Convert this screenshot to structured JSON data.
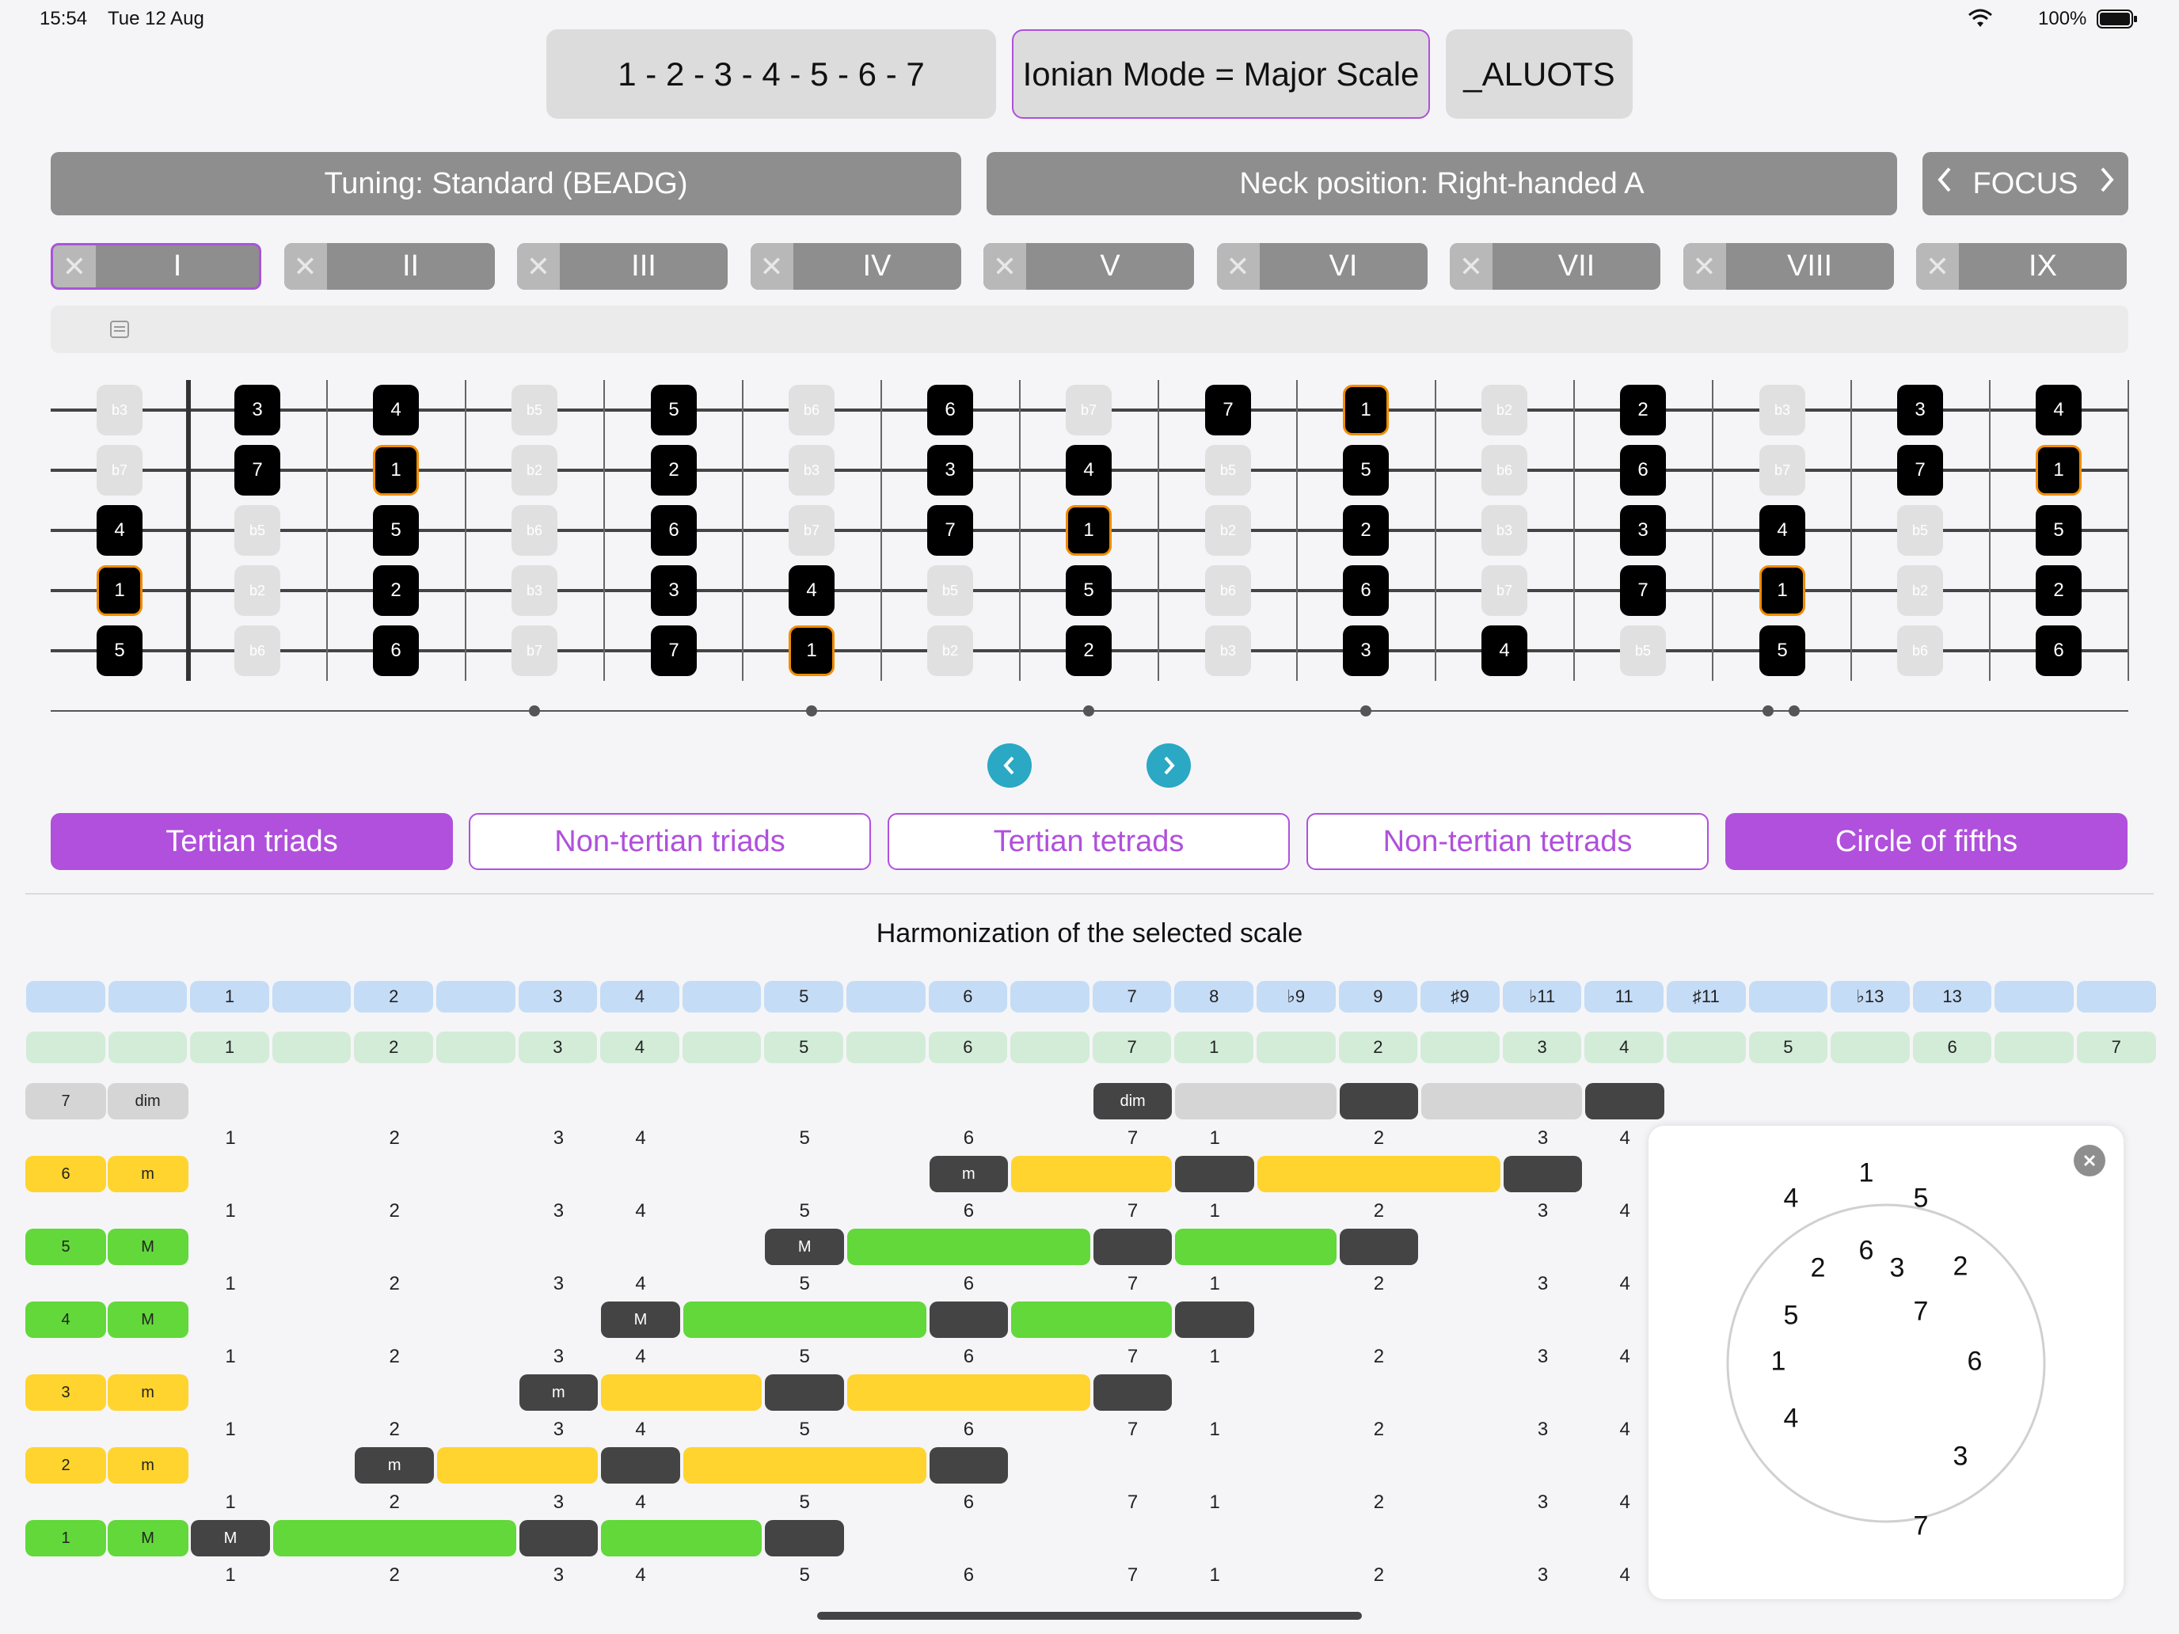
{
  "status": {
    "time": "15:54",
    "date": "Tue 12 Aug",
    "battery": "100%"
  },
  "top": {
    "formula": "1 - 2 - 3 - 4 - 5 - 6 - 7",
    "mode": "Ionian Mode = Major Scale",
    "aluots": "_ALUOTS"
  },
  "controls": {
    "tuning": "Tuning: Standard (BEADG)",
    "neck": "Neck position: Right-handed A",
    "focus": "FOCUS"
  },
  "positions": [
    "I",
    "II",
    "III",
    "IV",
    "V",
    "VI",
    "VII",
    "VIII",
    "IX"
  ],
  "fretboard": {
    "strings": [
      [
        "b3",
        "3",
        "4",
        "b5",
        "5",
        "b6",
        "6",
        "b7",
        "7",
        "1",
        "b2",
        "2",
        "b3",
        "3",
        "4"
      ],
      [
        "b7",
        "7",
        "1",
        "b2",
        "2",
        "b3",
        "3",
        "4",
        "b5",
        "5",
        "b6",
        "6",
        "b7",
        "7",
        "1"
      ],
      [
        "4",
        "b5",
        "5",
        "b6",
        "6",
        "b7",
        "7",
        "1",
        "b2",
        "2",
        "b3",
        "3",
        "4",
        "b5",
        "5"
      ],
      [
        "1",
        "b2",
        "2",
        "b3",
        "3",
        "4",
        "b5",
        "5",
        "b6",
        "6",
        "b7",
        "7",
        "1",
        "b2",
        "2"
      ],
      [
        "5",
        "b6",
        "6",
        "b7",
        "7",
        "1",
        "b2",
        "2",
        "b3",
        "3",
        "4",
        "b5",
        "5",
        "b6",
        "6"
      ]
    ],
    "states": [
      [
        "off",
        "on",
        "on",
        "off",
        "on",
        "off",
        "on",
        "off",
        "on",
        "root",
        "off",
        "on",
        "off",
        "on",
        "on"
      ],
      [
        "off",
        "on",
        "root",
        "off",
        "on",
        "off",
        "on",
        "on",
        "off",
        "on",
        "off",
        "on",
        "off",
        "on",
        "root"
      ],
      [
        "on",
        "off",
        "on",
        "off",
        "on",
        "off",
        "on",
        "root",
        "off",
        "on",
        "off",
        "on",
        "on",
        "off",
        "on"
      ],
      [
        "root",
        "off",
        "on",
        "off",
        "on",
        "on",
        "off",
        "on",
        "off",
        "on",
        "off",
        "on",
        "root",
        "off",
        "on"
      ],
      [
        "on",
        "off",
        "on",
        "off",
        "on",
        "root",
        "off",
        "on",
        "off",
        "on",
        "on",
        "off",
        "on",
        "off",
        "on"
      ]
    ]
  },
  "tabs": [
    "Tertian triads",
    "Non-tertian triads",
    "Tertian tetrads",
    "Non-tertian tetrads",
    "Circle of fifths"
  ],
  "tabs_active": [
    true,
    false,
    false,
    false,
    true
  ],
  "harmonization": {
    "title": "Harmonization of the selected scale",
    "blue_row": [
      "",
      "",
      "1",
      "",
      "2",
      "",
      "3",
      "4",
      "",
      "5",
      "",
      "6",
      "",
      "7",
      "8",
      "♭9",
      "9",
      "♯9",
      "♭11",
      "11",
      "♯11",
      "",
      "♭13",
      "13",
      "",
      ""
    ],
    "green_row": [
      "",
      "",
      "1",
      "",
      "2",
      "",
      "3",
      "4",
      "",
      "5",
      "",
      "6",
      "",
      "7",
      "1",
      "",
      "2",
      "",
      "3",
      "4",
      "",
      "5",
      "",
      "6",
      "",
      "7"
    ],
    "number_row": [
      "1",
      "2",
      "3",
      "4",
      "5",
      "6",
      "7",
      "1",
      "2",
      "3",
      "4"
    ],
    "chords": [
      {
        "degree": "7",
        "quality": "dim",
        "label": "dim"
      },
      {
        "degree": "6",
        "quality": "m",
        "label": "m"
      },
      {
        "degree": "5",
        "quality": "M",
        "label": "M"
      },
      {
        "degree": "4",
        "quality": "M",
        "label": "M"
      },
      {
        "degree": "3",
        "quality": "m",
        "label": "m"
      },
      {
        "degree": "2",
        "quality": "m",
        "label": "m"
      },
      {
        "degree": "1",
        "quality": "M",
        "label": "M"
      }
    ]
  },
  "circle_of_fifths": {
    "outer": [
      "1",
      "5",
      "2",
      "6",
      "3",
      "7",
      "4"
    ],
    "inner": [
      "6",
      "3",
      "7",
      "1",
      "4",
      "5",
      "2"
    ]
  },
  "colors": {
    "accent": "#b050dc",
    "major": "#62d83a",
    "minor": "#ffd42e",
    "dim": "#d5d5d5",
    "dark": "#444444",
    "teal": "#2aa8c4"
  }
}
